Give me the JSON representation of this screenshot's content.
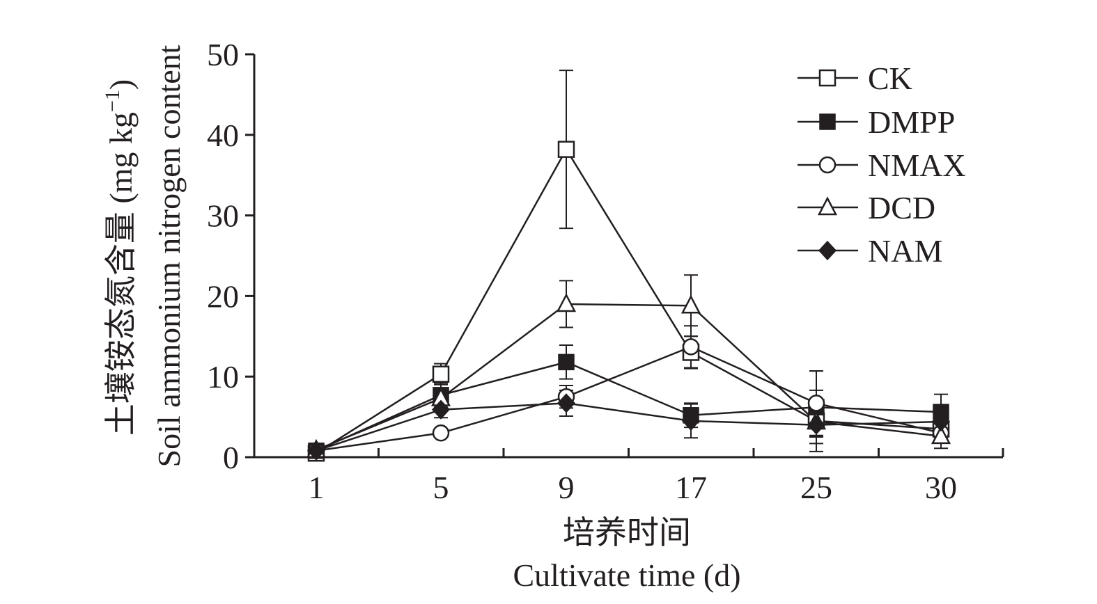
{
  "chart_data": {
    "type": "line",
    "x": [
      "1",
      "5",
      "9",
      "17",
      "25",
      "30"
    ],
    "xlabel_cn": "培养时间",
    "xlabel_en": "Cultivate time (d)",
    "ylabel_cn": "土壤铵态氮含量 (mg kg",
    "ylabel_unit_sup": "−1",
    "ylabel_close": ")",
    "ylabel_en": "Soil ammonium nitrogen content",
    "ylim": [
      0,
      50
    ],
    "yticks": [
      "0",
      "10",
      "20",
      "30",
      "40",
      "50"
    ],
    "legend_position": "top-right",
    "grid": false,
    "series": [
      {
        "name": "CK",
        "marker": "square-open",
        "values": [
          0.5,
          10.3,
          38.2,
          13.0,
          4.5,
          3.5
        ],
        "errors": [
          0.5,
          1.3,
          9.8,
          2.0,
          3.8,
          1.5
        ]
      },
      {
        "name": "DMPP",
        "marker": "square-filled",
        "values": [
          0.8,
          7.7,
          11.8,
          5.2,
          6.2,
          5.6
        ],
        "errors": [
          0.4,
          1.5,
          2.1,
          1.5,
          4.5,
          2.2
        ]
      },
      {
        "name": "NMAX",
        "marker": "circle-open",
        "values": [
          0.8,
          3.0,
          7.5,
          13.7,
          6.7,
          3.0
        ],
        "errors": [
          0.3,
          0.5,
          1.4,
          2.6,
          4.0,
          1.2
        ]
      },
      {
        "name": "DCD",
        "marker": "triangle-open",
        "values": [
          0.9,
          7.3,
          19.0,
          18.8,
          4.4,
          2.6
        ],
        "errors": [
          0.3,
          1.2,
          2.9,
          3.8,
          1.8,
          1.5
        ]
      },
      {
        "name": "NAM",
        "marker": "diamond-filled",
        "values": [
          0.8,
          5.9,
          6.7,
          4.5,
          4.0,
          4.4
        ],
        "errors": [
          0.3,
          1.0,
          1.6,
          2.1,
          1.5,
          1.3
        ]
      }
    ]
  }
}
